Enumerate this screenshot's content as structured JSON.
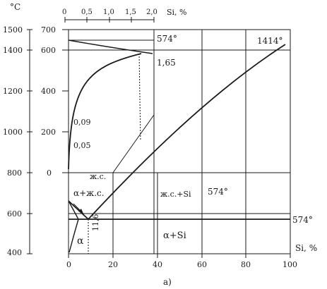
{
  "diagram": {
    "caption": "а)",
    "left_outer_axis": {
      "unit": "°C",
      "ticks": [
        "1500",
        "1400",
        "1200",
        "1000",
        "800",
        "600",
        "400"
      ]
    },
    "left_inner_axis": {
      "ticks": [
        "700",
        "600",
        "400",
        "200",
        "0"
      ]
    },
    "bottom_axis": {
      "ticks": [
        "0",
        "20",
        "40",
        "60",
        "80",
        "100"
      ],
      "label": "Si, %"
    },
    "top_axis": {
      "ticks": [
        "0",
        "0,5",
        "1,0",
        "1,5",
        "2,0"
      ],
      "label": "Si, %"
    },
    "annotations": {
      "eutectic_temp_top": "574°",
      "si_melting": "1414°",
      "solubility_max": "1,65",
      "solubility_1": "0,09",
      "solubility_2": "0,05",
      "liquid": "ж.с.",
      "alpha_plus_liquid": "α+ж.с.",
      "liquid_plus_si": "ж.с.+Si",
      "eutectic_temp_mid": "574°",
      "eutectic_temp_right": "574°",
      "alpha": "α",
      "eutectic_composition": "11,6",
      "alpha_plus_si": "α+Si"
    }
  }
}
